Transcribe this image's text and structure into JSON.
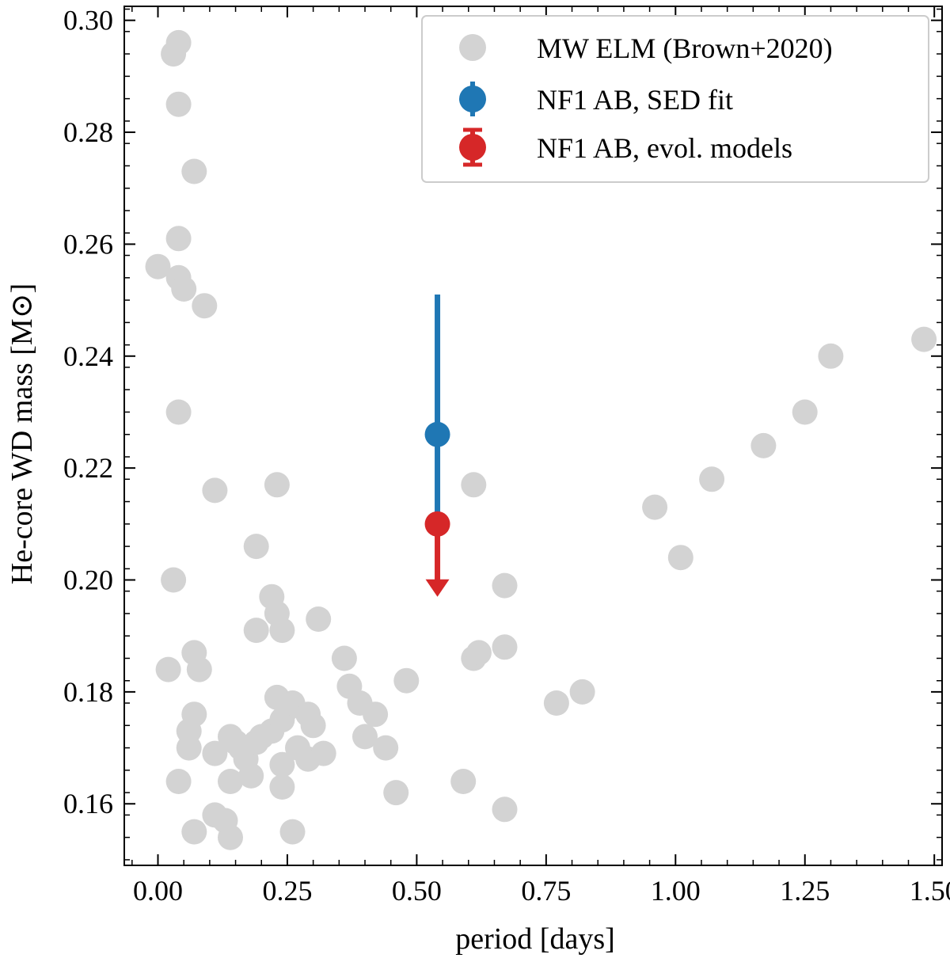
{
  "chart_data": {
    "type": "scatter",
    "xlabel": "period [days]",
    "ylabel": "He-core WD mass [M⊙]",
    "xlim": [
      -0.065,
      1.515
    ],
    "ylim": [
      0.149,
      0.3025
    ],
    "xticks": [
      0.0,
      0.25,
      0.5,
      0.75,
      1.0,
      1.25,
      1.5
    ],
    "xtick_labels": [
      "0.00",
      "0.25",
      "0.50",
      "0.75",
      "1.00",
      "1.25",
      "1.50"
    ],
    "yticks": [
      0.16,
      0.18,
      0.2,
      0.22,
      0.24,
      0.26,
      0.28,
      0.3
    ],
    "ytick_labels": [
      "0.16",
      "0.18",
      "0.20",
      "0.22",
      "0.24",
      "0.26",
      "0.28",
      "0.30"
    ],
    "legend_position": "top-right",
    "series": [
      {
        "name": "MW ELM (Brown+2020)",
        "kind": "points",
        "color": "#d3d3d3",
        "points": [
          [
            0.03,
            0.294
          ],
          [
            0.04,
            0.296
          ],
          [
            0.04,
            0.285
          ],
          [
            0.07,
            0.273
          ],
          [
            0.04,
            0.261
          ],
          [
            0.0,
            0.256
          ],
          [
            0.04,
            0.254
          ],
          [
            0.05,
            0.252
          ],
          [
            0.09,
            0.249
          ],
          [
            0.04,
            0.23
          ],
          [
            0.11,
            0.216
          ],
          [
            0.23,
            0.217
          ],
          [
            0.19,
            0.206
          ],
          [
            0.03,
            0.2
          ],
          [
            0.22,
            0.197
          ],
          [
            0.23,
            0.194
          ],
          [
            0.24,
            0.191
          ],
          [
            0.19,
            0.191
          ],
          [
            0.31,
            0.193
          ],
          [
            0.07,
            0.187
          ],
          [
            0.08,
            0.184
          ],
          [
            0.02,
            0.184
          ],
          [
            0.36,
            0.186
          ],
          [
            0.37,
            0.181
          ],
          [
            0.48,
            0.182
          ],
          [
            0.07,
            0.176
          ],
          [
            0.06,
            0.173
          ],
          [
            0.06,
            0.17
          ],
          [
            0.04,
            0.164
          ],
          [
            0.07,
            0.155
          ],
          [
            0.11,
            0.158
          ],
          [
            0.13,
            0.157
          ],
          [
            0.14,
            0.154
          ],
          [
            0.11,
            0.169
          ],
          [
            0.14,
            0.172
          ],
          [
            0.15,
            0.171
          ],
          [
            0.16,
            0.17
          ],
          [
            0.17,
            0.168
          ],
          [
            0.18,
            0.165
          ],
          [
            0.19,
            0.171
          ],
          [
            0.2,
            0.172
          ],
          [
            0.22,
            0.173
          ],
          [
            0.23,
            0.179
          ],
          [
            0.24,
            0.175
          ],
          [
            0.25,
            0.177
          ],
          [
            0.26,
            0.178
          ],
          [
            0.24,
            0.167
          ],
          [
            0.24,
            0.163
          ],
          [
            0.26,
            0.155
          ],
          [
            0.27,
            0.17
          ],
          [
            0.29,
            0.168
          ],
          [
            0.29,
            0.176
          ],
          [
            0.3,
            0.174
          ],
          [
            0.32,
            0.169
          ],
          [
            0.14,
            0.164
          ],
          [
            0.39,
            0.178
          ],
          [
            0.42,
            0.176
          ],
          [
            0.4,
            0.172
          ],
          [
            0.44,
            0.17
          ],
          [
            0.46,
            0.162
          ],
          [
            0.59,
            0.164
          ],
          [
            0.61,
            0.217
          ],
          [
            0.61,
            0.186
          ],
          [
            0.62,
            0.187
          ],
          [
            0.67,
            0.199
          ],
          [
            0.67,
            0.188
          ],
          [
            0.67,
            0.159
          ],
          [
            0.77,
            0.178
          ],
          [
            0.82,
            0.18
          ],
          [
            0.96,
            0.213
          ],
          [
            1.01,
            0.204
          ],
          [
            1.07,
            0.218
          ],
          [
            1.17,
            0.224
          ],
          [
            1.25,
            0.23
          ],
          [
            1.3,
            0.24
          ],
          [
            1.48,
            0.243
          ]
        ]
      },
      {
        "name": "NF1 AB, SED fit",
        "kind": "errorbar",
        "color": "#1f77b4",
        "x": 0.54,
        "y": 0.226,
        "yerr_low": 0.015,
        "yerr_high": 0.025
      },
      {
        "name": "NF1 AB, evol. models",
        "kind": "upper_limit",
        "color": "#d62728",
        "x": 0.54,
        "y": 0.21,
        "arrow_to": 0.197
      }
    ]
  }
}
